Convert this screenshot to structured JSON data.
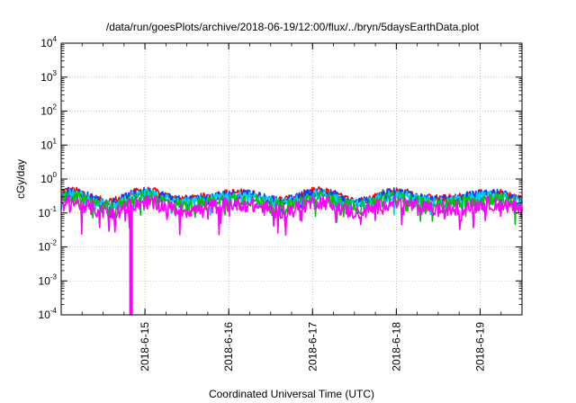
{
  "chart_data": {
    "type": "line",
    "title": "/data/run/goesPlots/archive/2018-06-19/12:00/flux/../bryn/5daysEarthData.plot",
    "xlabel": "Coordinated Universal Time (UTC)",
    "ylabel": "cGy/day",
    "yscale": "log",
    "ylim": [
      0.0001,
      10000
    ],
    "y_ticks": [
      {
        "base": "10",
        "exp": "4"
      },
      {
        "base": "10",
        "exp": "3"
      },
      {
        "base": "10",
        "exp": "2"
      },
      {
        "base": "10",
        "exp": "1"
      },
      {
        "base": "10",
        "exp": "0"
      },
      {
        "base": "10",
        "exp": "-1"
      },
      {
        "base": "10",
        "exp": "-2"
      },
      {
        "base": "10",
        "exp": "-3"
      },
      {
        "base": "10",
        "exp": "-4"
      }
    ],
    "xlim": [
      "2018-06-14 00:00",
      "2018-06-19 12:00"
    ],
    "x_ticks": [
      "2018-6-15",
      "2018-6-16",
      "2018-6-17",
      "2018-6-18",
      "2018-6-19"
    ],
    "grid": true,
    "series": [
      {
        "color": "#ff0000",
        "base": 0.33,
        "level": 0.33
      },
      {
        "color": "#0044ff",
        "base": 0.3,
        "level": 0.3
      },
      {
        "color": "#00cfff",
        "base": 0.25,
        "level": 0.25
      },
      {
        "color": "#00c000",
        "base": 0.21,
        "level": 0.21
      },
      {
        "color": "#ff00ff",
        "base": 0.15,
        "level": 0.15
      }
    ],
    "dropout": {
      "time": "2018-06-14 20:00",
      "series_color": "#ff00ff",
      "value": 0.0001
    }
  }
}
